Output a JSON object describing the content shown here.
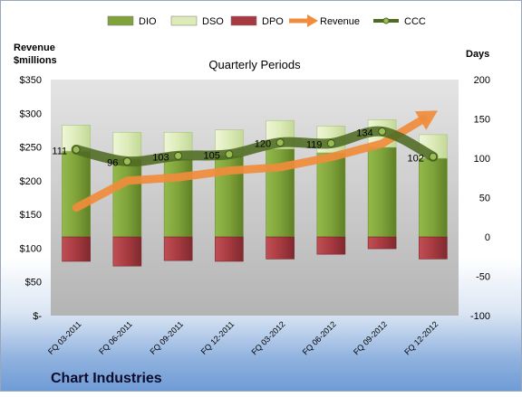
{
  "chart_data": {
    "type": "bar",
    "title": "Quarterly Periods",
    "company": "Chart Industries",
    "left_axis": {
      "label_line1": "Revenue",
      "label_line2": "$millions",
      "ylim": [
        0,
        350
      ],
      "ticks": [
        0,
        50,
        100,
        150,
        200,
        250,
        300,
        350
      ],
      "tick_labels": [
        "$-",
        "$50",
        "$100",
        "$150",
        "$200",
        "$250",
        "$300",
        "$350"
      ]
    },
    "right_axis": {
      "label": "Days",
      "ylim": [
        -100,
        200
      ],
      "ticks": [
        -100,
        -50,
        0,
        50,
        100,
        150,
        200
      ],
      "tick_labels": [
        "-100",
        "-50",
        "0",
        "50",
        "100",
        "150",
        "200"
      ]
    },
    "categories": [
      "FQ 03-2011",
      "FQ 06-2011",
      "FQ 09-2011",
      "FQ 12-2011",
      "FQ 03-2012",
      "FQ 06-2012",
      "FQ 09-2012",
      "FQ 12-2012"
    ],
    "legend": {
      "position": "top",
      "items": [
        {
          "name": "DIO",
          "kind": "bar",
          "color": "#7fa33a"
        },
        {
          "name": "DSO",
          "kind": "bar",
          "color": "#dcebb8"
        },
        {
          "name": "DPO",
          "kind": "bar",
          "color": "#a63a40"
        },
        {
          "name": "Revenue",
          "kind": "arrow",
          "color": "#f08c3c"
        },
        {
          "name": "CCC",
          "kind": "line",
          "color": "#4f6b22"
        }
      ]
    },
    "series": [
      {
        "name": "DIO",
        "axis": "days",
        "values": [
          109,
          99,
          99,
          103,
          112,
          107,
          114,
          100
        ]
      },
      {
        "name": "DSO",
        "axis": "days",
        "values": [
          33,
          34,
          34,
          33,
          36,
          34,
          35,
          30
        ]
      },
      {
        "name": "DPO",
        "axis": "days",
        "values": [
          -31,
          -37,
          -30,
          -31,
          -28,
          -22,
          -15,
          -28
        ]
      },
      {
        "name": "CCC",
        "axis": "days",
        "values": [
          111,
          96,
          103,
          105,
          120,
          119,
          134,
          102
        ],
        "labels": [
          "111",
          "96",
          "103",
          "105",
          "120",
          "119",
          "134",
          "102"
        ]
      },
      {
        "name": "Revenue",
        "axis": "revenue",
        "values": [
          160,
          200,
          205,
          215,
          220,
          235,
          255,
          300
        ]
      }
    ],
    "colors": {
      "dio": "#7fa33a",
      "dso": "#dcebb8",
      "dpo": "#a63a40",
      "revenue": "#f08c3c",
      "ccc": "#4f6b22",
      "plot_bg": "#c8c8c8"
    },
    "grid": false
  }
}
